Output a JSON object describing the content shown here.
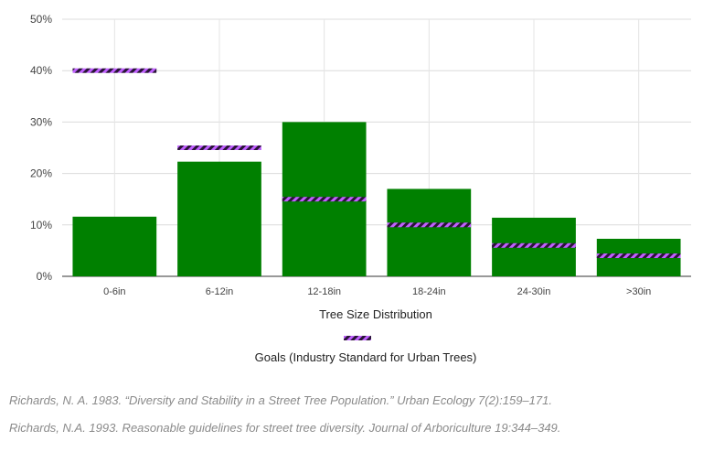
{
  "chart_data": {
    "type": "bar",
    "categories": [
      "0-6in",
      "6-12in",
      "12-18in",
      "18-24in",
      "24-30in",
      ">30in"
    ],
    "series": [
      {
        "values": [
          11.6,
          22.3,
          30.0,
          17.0,
          11.4,
          7.3
        ],
        "color": "#008000"
      },
      {
        "name": "Goals (Industry Standard for Urban Trees)",
        "values": [
          40,
          25,
          15,
          10,
          6,
          4
        ],
        "color": "#a855f7",
        "style": "hatched-marker"
      }
    ],
    "xlabel": "Tree Size Distribution",
    "ylim": [
      0,
      50
    ],
    "yticks": [
      "0%",
      "10%",
      "20%",
      "30%",
      "40%",
      "50%"
    ],
    "grid": true,
    "legend_position": "bottom"
  },
  "references": [
    "Richards, N. A. 1983. “Diversity and Stability in a Street Tree Population.” Urban Ecology 7(2):159–171.",
    "Richards, N.A. 1993. Reasonable guidelines for street tree diversity. Journal of Arboriculture 19:344–349."
  ]
}
